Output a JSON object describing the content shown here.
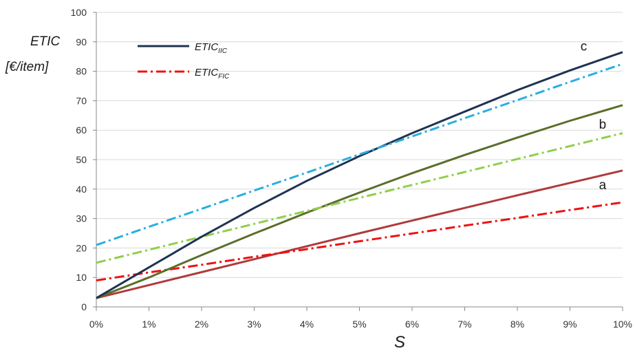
{
  "chart_data": {
    "type": "line",
    "ylabel_line1": "ETIC",
    "ylabel_line2": "[€/item]",
    "xlabel": "S",
    "ylim": [
      0,
      100
    ],
    "xlim": [
      0,
      10
    ],
    "y_ticks": [
      0,
      10,
      20,
      30,
      40,
      50,
      60,
      70,
      80,
      90,
      100
    ],
    "x_ticks": [
      0,
      1,
      2,
      3,
      4,
      5,
      6,
      7,
      8,
      9,
      10
    ],
    "x_tick_labels": [
      "0%",
      "1%",
      "2%",
      "3%",
      "4%",
      "5%",
      "6%",
      "7%",
      "8%",
      "9%",
      "10%"
    ],
    "grid": "horizontal",
    "legend_position": "top-left",
    "legend": [
      {
        "base": "ETIC",
        "sub": "IIC",
        "style": "solid",
        "color": "#1f3352"
      },
      {
        "base": "ETIC",
        "sub": "FIC",
        "style": "dash-dot",
        "color": "#ee1111"
      }
    ],
    "series": [
      {
        "label": "a",
        "type": "IIC",
        "style": "solid",
        "color": "#b03a3a",
        "x": [
          0,
          1,
          2,
          3,
          4,
          5,
          6,
          7,
          8,
          9,
          10
        ],
        "y": [
          3,
          7.4,
          11.8,
          16.2,
          20.6,
          25,
          29.3,
          33.6,
          37.9,
          42.1,
          46.3
        ]
      },
      {
        "label": "a",
        "type": "FIC",
        "style": "dash-dot",
        "color": "#ee1111",
        "x": [
          0,
          1,
          2,
          3,
          4,
          5,
          6,
          7,
          8,
          9,
          10
        ],
        "y": [
          9,
          11.7,
          14.3,
          17,
          19.6,
          22.3,
          24.9,
          27.6,
          30.2,
          32.9,
          35.5
        ]
      },
      {
        "label": "b",
        "type": "IIC",
        "style": "solid",
        "color": "#5a6e2a",
        "x": [
          0,
          1,
          2,
          3,
          4,
          5,
          6,
          7,
          8,
          9,
          10
        ],
        "y": [
          3,
          10,
          17.6,
          24.9,
          32,
          38.8,
          45.4,
          51.6,
          57.5,
          63.2,
          68.5
        ]
      },
      {
        "label": "b",
        "type": "FIC",
        "style": "dash-dot",
        "color": "#8fcf4a",
        "x": [
          0,
          1,
          2,
          3,
          4,
          5,
          6,
          7,
          8,
          9,
          10
        ],
        "y": [
          15,
          19.4,
          23.8,
          28.2,
          32.6,
          37,
          41.4,
          45.8,
          50.2,
          54.6,
          59
        ]
      },
      {
        "label": "c",
        "type": "IIC",
        "style": "solid",
        "color": "#1f3352",
        "x": [
          0,
          1,
          2,
          3,
          4,
          5,
          6,
          7,
          8,
          9,
          10
        ],
        "y": [
          3,
          13.4,
          23.8,
          33.6,
          42.8,
          51.2,
          59,
          66.3,
          73.6,
          80.3,
          86.5
        ]
      },
      {
        "label": "c",
        "type": "FIC",
        "style": "dash-dot",
        "color": "#29aee0",
        "x": [
          0,
          1,
          2,
          3,
          4,
          5,
          6,
          7,
          8,
          9,
          10
        ],
        "y": [
          21,
          27.2,
          33.3,
          39.5,
          45.6,
          51.8,
          57.9,
          64.1,
          70.2,
          76.4,
          82.5
        ]
      }
    ],
    "curve_labels": [
      {
        "text": "a",
        "x": 9.55,
        "y": 40
      },
      {
        "text": "b",
        "x": 9.55,
        "y": 60.5
      },
      {
        "text": "c",
        "x": 9.2,
        "y": 87
      }
    ]
  }
}
